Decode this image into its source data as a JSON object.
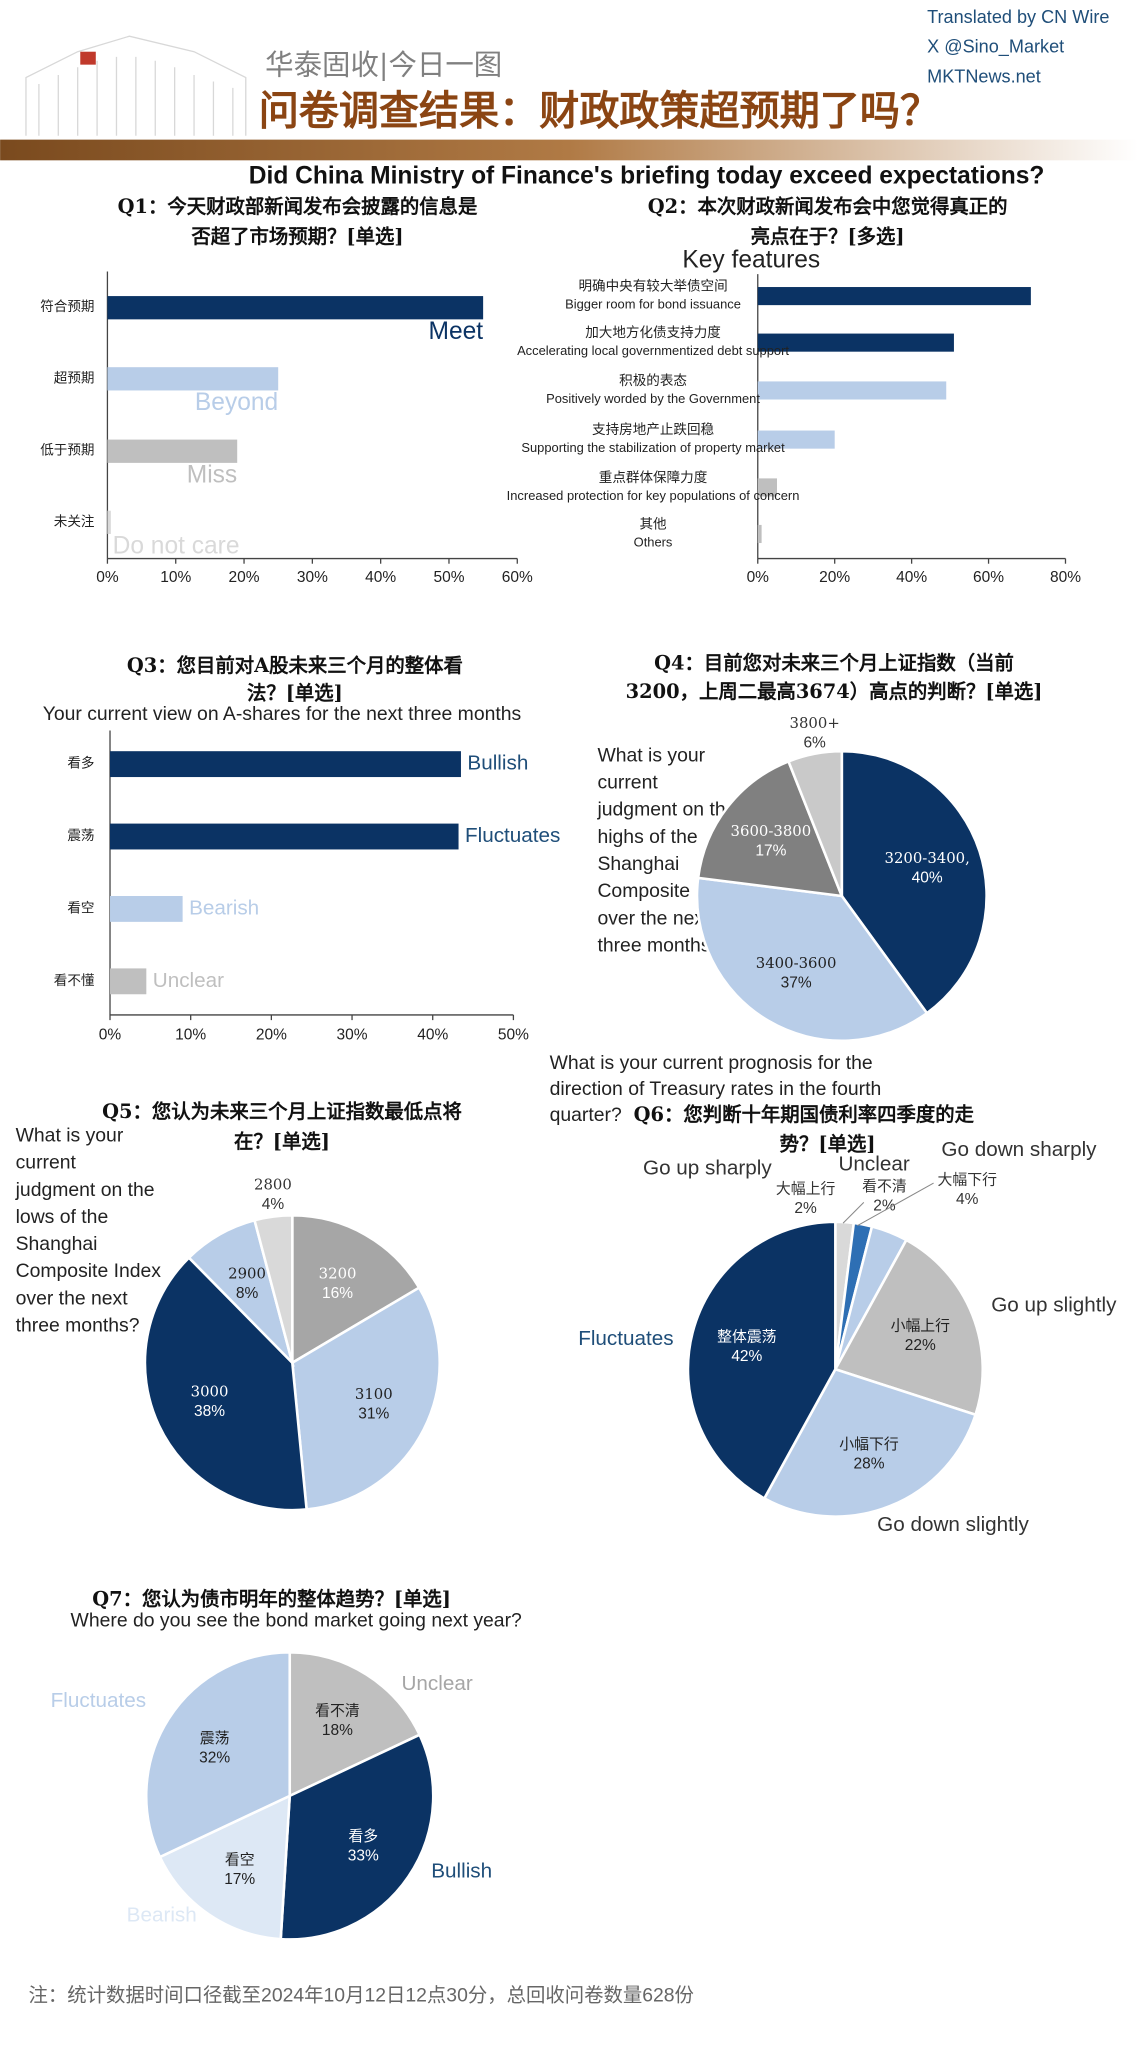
{
  "header": {
    "credits": [
      "Translated by CN Wire",
      "X @Sino_Market",
      "MKTNews.net"
    ],
    "brand": "华泰固收|今日一图",
    "title": "问卷调查结果：财政政策超预期了吗？",
    "subtitle": "Did China Ministry of Finance's briefing today exceed expectations?"
  },
  "chart_data": [
    {
      "type": "bar",
      "orientation": "horizontal",
      "title": "Q1：今天财政部新闻发布会披露的信息是否超了市场预期？[单选]",
      "categories": [
        "符合预期",
        "超预期",
        "低于预期",
        "未关注"
      ],
      "values": [
        55,
        25,
        19,
        0.5
      ],
      "annotations": [
        "Meet",
        "Beyond",
        "Miss",
        "Do not care"
      ],
      "colors": [
        "#0b3364",
        "#b8cde8",
        "#bfbfbf",
        "#d9d9d9"
      ],
      "xlim": [
        0,
        60
      ],
      "xticks": [
        {
          "value": 0,
          "label": "0%"
        },
        {
          "value": 10,
          "label": "10%"
        },
        {
          "value": 20,
          "label": "20%"
        },
        {
          "value": 30,
          "label": "30%"
        },
        {
          "value": 40,
          "label": "40%"
        },
        {
          "value": 50,
          "label": "50%"
        },
        {
          "value": 60,
          "label": "60%"
        }
      ]
    },
    {
      "type": "bar",
      "orientation": "horizontal",
      "title": "Q2：本次财政新闻发布会中您觉得真正的亮点在于？[多选]",
      "subtitle": "Key features",
      "categories": [
        "明确中央有较大举债空间",
        "加大地方化债支持力度",
        "积极的表态",
        "支持房地产止跌回稳",
        "重点群体保障力度",
        "其他"
      ],
      "translations": [
        "Bigger room for bond issuance",
        "Accelerating local governmentized debt support",
        "Positively worded by the Government",
        "Supporting the stabilization of property market",
        "Increased protection for key populations of concern",
        "Others"
      ],
      "values": [
        71,
        51,
        49,
        20,
        5,
        1
      ],
      "colors": [
        "#0b3364",
        "#0b3364",
        "#b8cde8",
        "#b8cde8",
        "#bfbfbf",
        "#bfbfbf"
      ],
      "xlim": [
        0,
        80
      ],
      "xticks": [
        {
          "value": 0,
          "label": "0%"
        },
        {
          "value": 20,
          "label": "20%"
        },
        {
          "value": 40,
          "label": "40%"
        },
        {
          "value": 60,
          "label": "60%"
        },
        {
          "value": 80,
          "label": "80%"
        }
      ]
    },
    {
      "type": "bar",
      "orientation": "horizontal",
      "title": "Q3：您目前对A股未来三个月的整体看法？[单选]",
      "subtitle": "Your current view on A-shares for the next three months",
      "categories": [
        "看多",
        "震荡",
        "看空",
        "看不懂"
      ],
      "values": [
        43.5,
        43.2,
        9,
        4.5
      ],
      "annotations": [
        "Bullish",
        "Fluctuates",
        "Bearish",
        "Unclear"
      ],
      "colors": [
        "#0b3364",
        "#0b3364",
        "#b8cde8",
        "#bfbfbf"
      ],
      "annotation_colors": [
        "#1f4e79",
        "#1f4e79",
        "#b8cde8",
        "#bfbfbf"
      ],
      "xlim": [
        0,
        50
      ],
      "xticks": [
        {
          "value": 0,
          "label": "0%"
        },
        {
          "value": 10,
          "label": "10%"
        },
        {
          "value": 20,
          "label": "20%"
        },
        {
          "value": 30,
          "label": "30%"
        },
        {
          "value": 40,
          "label": "40%"
        },
        {
          "value": 50,
          "label": "50%"
        }
      ]
    },
    {
      "type": "pie",
      "title": "Q4：目前您对未来三个月上证指数（当前3200，上周二最高3674）高点的判断？[单选]",
      "annotation": "What is your current judgment on the highs of the Shanghai Composite Index over the next three months?",
      "categories": [
        "3200-3400,",
        "3400-3600",
        "3600-3800",
        "3800+"
      ],
      "values": [
        40,
        37,
        17,
        6
      ],
      "value_labels": [
        "40%",
        "37%",
        "17%",
        "6%"
      ],
      "colors": [
        "#0b3364",
        "#b8cde8",
        "#808080",
        "#c9c9c9"
      ]
    },
    {
      "type": "pie",
      "title": "Q5：您认为未来三个月上证指数最低点将在？[单选]",
      "annotation": "What is your current judgment on the lows of the Shanghai Composite Index over the next three months?",
      "categories": [
        "3200",
        "3100",
        "3000",
        "2900",
        "2800"
      ],
      "values": [
        16,
        31,
        38,
        8,
        4
      ],
      "value_labels": [
        "16%",
        "31%",
        "38%",
        "8%",
        "4%"
      ],
      "colors": [
        "#a6a6a6",
        "#b8cde8",
        "#0b3364",
        "#b8cde8",
        "#d9d9d9"
      ]
    },
    {
      "type": "pie",
      "title": "Q6：您判断十年期国债利率四季度的走势？[单选]",
      "annotation": "What is your current prognosis for the direction of Treasury rates in the fourth quarter?",
      "categories": [
        "大幅上行",
        "看不清",
        "大幅下行",
        "小幅上行",
        "小幅下行",
        "整体震荡"
      ],
      "values": [
        2,
        2,
        4,
        22,
        28,
        42
      ],
      "value_labels": [
        "2%",
        "2%",
        "4%",
        "22%",
        "28%",
        "42%"
      ],
      "translations": [
        "Go up sharply",
        "Unclear",
        "Go down sharply",
        "Go up slightly",
        "Go down slightly",
        "Fluctuates"
      ],
      "translation_colors": [
        "#333333",
        "#333333",
        "#333333",
        "#333333",
        "#333333",
        "#1f4e79"
      ],
      "colors": [
        "#d9d9d9",
        "#2e6fb4",
        "#b8cde8",
        "#bfbfbf",
        "#b8cde8",
        "#0b3364"
      ]
    },
    {
      "type": "pie",
      "title": "Q7：您认为债市明年的整体趋势？[单选]",
      "subtitle": "Where do you see the bond market going next year?",
      "categories": [
        "看不清",
        "看多",
        "看空",
        "震荡"
      ],
      "values": [
        18,
        33,
        17,
        32
      ],
      "value_labels": [
        "18%",
        "33%",
        "17%",
        "32%"
      ],
      "translations": [
        "Unclear",
        "Bullish",
        "Bearish",
        "Fluctuates"
      ],
      "translation_colors": [
        "#a6a6a6",
        "#1f4e79",
        "#dde8f5",
        "#b8cde8"
      ],
      "colors": [
        "#bfbfbf",
        "#0b3364",
        "#dde8f5",
        "#b8cde8"
      ]
    }
  ],
  "footer": "注：统计数据时间口径截至2024年10月12日12点30分，总回收问卷数量628份"
}
